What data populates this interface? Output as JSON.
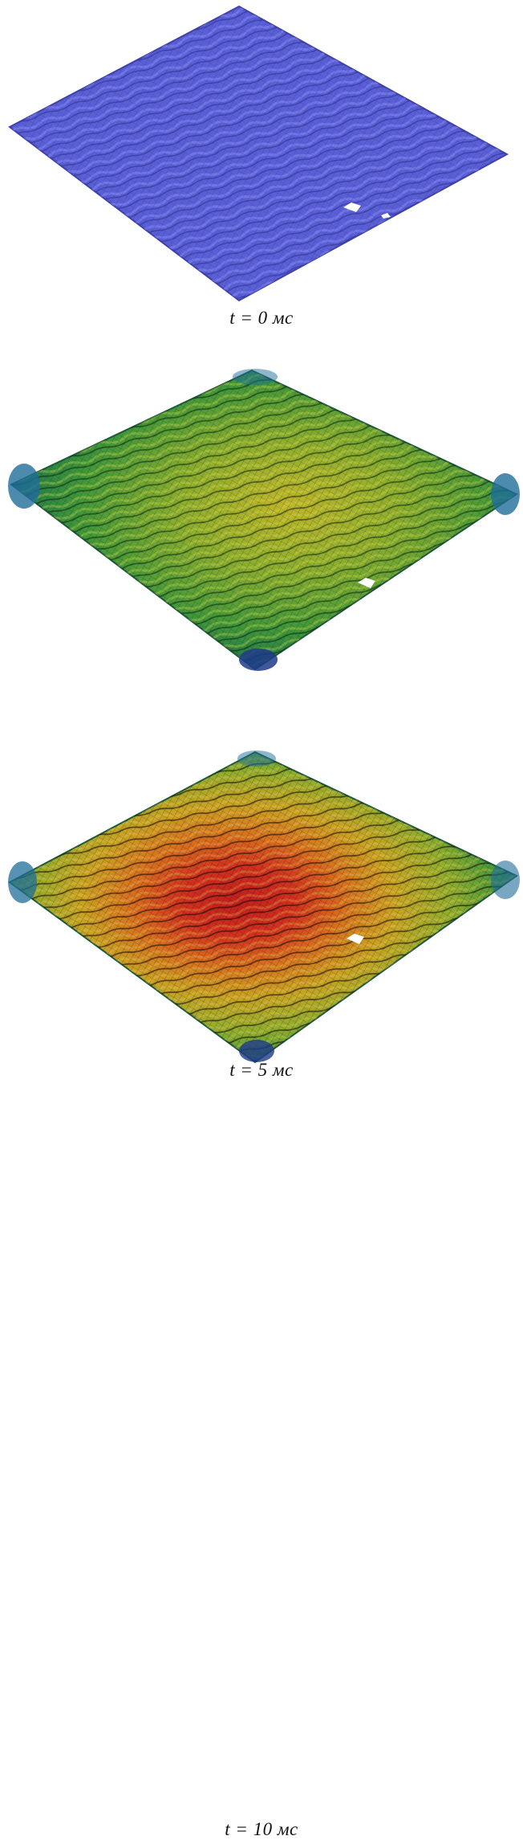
{
  "figure": {
    "panels": [
      {
        "caption": "t = 0 мс",
        "colors": [
          "#5a5fd6",
          "#4e52c4",
          "#3f43a8",
          "#6a6fe3"
        ]
      },
      {
        "caption": "t = 5 мс",
        "colors": [
          "#2f8f3c",
          "#5aa53a",
          "#a8b32c",
          "#1f6d9a",
          "#1d3a8a"
        ]
      },
      {
        "caption": "t = 10 мс",
        "colors": [
          "#2f8f3c",
          "#8fae2e",
          "#d7a820",
          "#d8481f",
          "#c31e1e",
          "#1f6d9a"
        ]
      }
    ]
  }
}
